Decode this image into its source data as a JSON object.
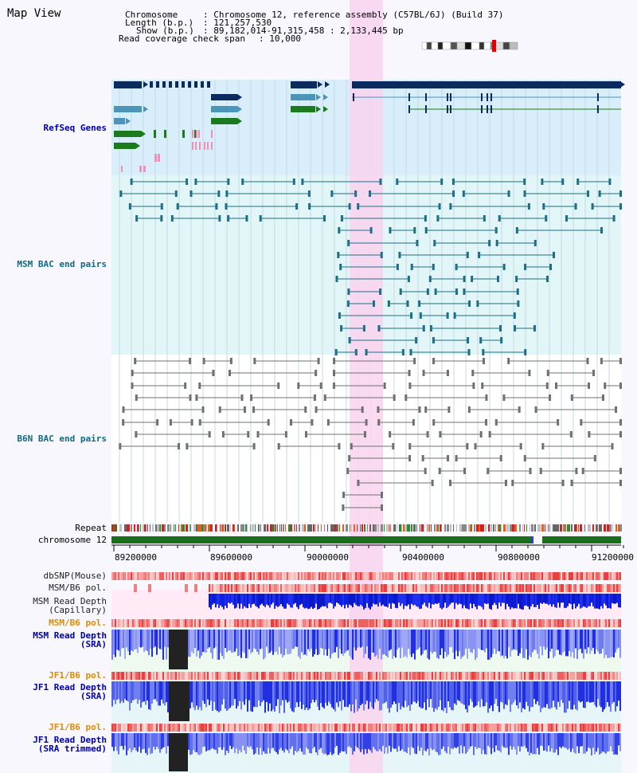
{
  "panel": {
    "title": "Map View"
  },
  "header": {
    "chromosome_key": "Chromosome",
    "chromosome_value": ": Chromosome 12, reference assembly (C57BL/6J) (Build 37)",
    "length_key": "Length (b.p.)",
    "length_value": ": 121,257,530",
    "show_key": "Show (b.p.)",
    "show_value": ": 89,182,014-91,315,458 : 2,133,445 bp",
    "coverage_key": "Read coverage check span",
    "coverage_value": ": 10,000"
  },
  "tracks": {
    "refseq": "RefSeq Genes",
    "msm_bac": "MSM BAC end pairs",
    "b6n_bac": "B6N BAC end pairs",
    "repeat": "Repeat",
    "chromosome": "chromosome 12",
    "dbsnp": "dbSNP(Mouse)",
    "msm_b6_pol_1": "MSM/B6 pol.",
    "msm_read_cap": "MSM Read Depth\n(Capillary)",
    "msm_b6_pol_2": "MSM/B6 pol.",
    "msm_read_sra": "MSM Read Depth\n(SRA)",
    "jf1_b6_pol_1": "JF1/B6 pol.",
    "jf1_read_sra": "JF1 Read Depth\n(SRA)",
    "jf1_b6_pol_2": "JF1/B6 pol.",
    "jf1_read_trim": "JF1 Read Depth\n(SRA trimmed)"
  },
  "axis": {
    "ticks": [
      "89200000",
      "89600000",
      "90000000",
      "90400000",
      "90800000",
      "91200000"
    ]
  },
  "colors": {
    "refseq_bg": "#d8eefa",
    "bac_bg": "#e2f6f7",
    "highlight": "#f9d3ef",
    "navy": "#0b2a5e",
    "teal": "#4a95b8",
    "green": "#1b7a1b",
    "pink": "#f48fb8",
    "msm_bac": "#1d6f86",
    "b6n_bac": "#707070",
    "label_blue": "#0000aa",
    "label_teal": "#106a80",
    "label_orange": "#e08a00",
    "chromosome_green": "#1b6e1b"
  }
}
